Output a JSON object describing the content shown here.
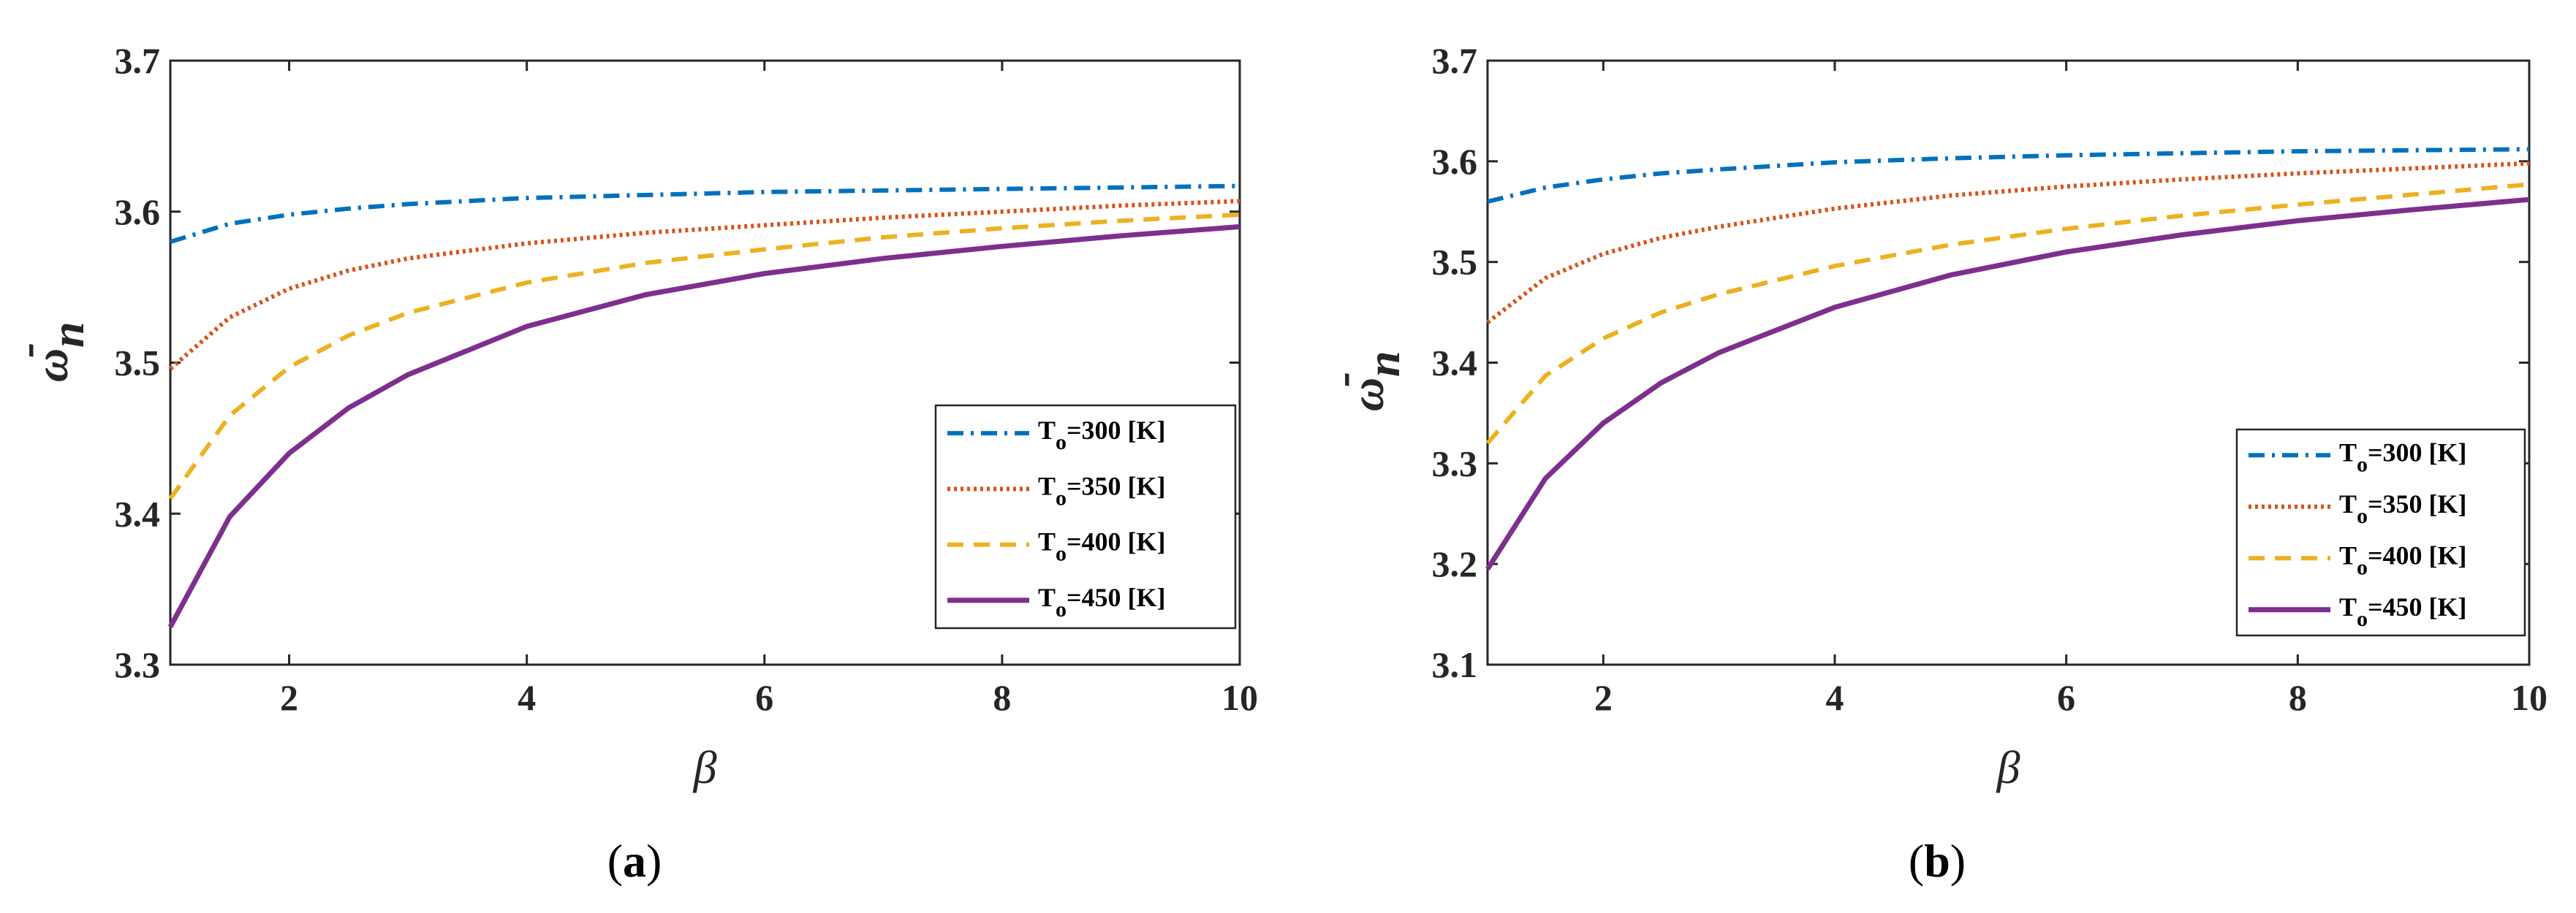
{
  "chart_data": [
    {
      "type": "line",
      "panel_label": "(a)",
      "panel_letter": "a",
      "xlabel": "β",
      "ylabel_symbol": "ω",
      "ylabel_sup": "-",
      "ylabel_sub": "n",
      "xlim": [
        1,
        10
      ],
      "ylim": [
        3.3,
        3.7
      ],
      "xticks": [
        2,
        4,
        6,
        8,
        10
      ],
      "yticks": [
        3.3,
        3.4,
        3.5,
        3.6,
        3.7
      ],
      "ytick_labels": [
        "3.3",
        "3.4",
        "3.5",
        "3.6",
        "3.7"
      ],
      "grid": false,
      "legend_position": "lower-right",
      "x": [
        1,
        1.5,
        2,
        2.5,
        3,
        4,
        5,
        6,
        7,
        8,
        9,
        10
      ],
      "series": [
        {
          "name": "T_o=300 [K]",
          "T": "T",
          "sub": "o",
          "rest": "=300 [K]",
          "color": "#0072BD",
          "dash": "dashdot",
          "values": [
            3.58,
            3.592,
            3.598,
            3.602,
            3.605,
            3.609,
            3.611,
            3.613,
            3.614,
            3.615,
            3.616,
            3.617
          ]
        },
        {
          "name": "T_o=350 [K]",
          "T": "T",
          "sub": "o",
          "rest": "=350 [K]",
          "color": "#D95319",
          "dash": "dotted",
          "values": [
            3.496,
            3.53,
            3.549,
            3.561,
            3.569,
            3.579,
            3.586,
            3.591,
            3.596,
            3.6,
            3.604,
            3.607
          ]
        },
        {
          "name": "T_o=400 [K]",
          "T": "T",
          "sub": "o",
          "rest": "=400 [K]",
          "color": "#EDB120",
          "dash": "dashed",
          "values": [
            3.41,
            3.465,
            3.497,
            3.518,
            3.533,
            3.553,
            3.566,
            3.575,
            3.583,
            3.589,
            3.594,
            3.598
          ]
        },
        {
          "name": "T_o=450 [K]",
          "T": "T",
          "sub": "o",
          "rest": "=450 [K]",
          "color": "#7E2F8E",
          "dash": "solid",
          "values": [
            3.325,
            3.398,
            3.44,
            3.47,
            3.492,
            3.524,
            3.545,
            3.559,
            3.569,
            3.577,
            3.584,
            3.59
          ]
        }
      ]
    },
    {
      "type": "line",
      "panel_label": "(b)",
      "panel_letter": "b",
      "xlabel": "β",
      "ylabel_symbol": "ω",
      "ylabel_sup": "-",
      "ylabel_sub": "n",
      "xlim": [
        1,
        10
      ],
      "ylim": [
        3.1,
        3.7
      ],
      "xticks": [
        2,
        4,
        6,
        8,
        10
      ],
      "yticks": [
        3.1,
        3.2,
        3.3,
        3.4,
        3.5,
        3.6,
        3.7
      ],
      "ytick_labels": [
        "3.1",
        "3.2",
        "3.3",
        "3.4",
        "3.5",
        "3.6",
        "3.7"
      ],
      "grid": false,
      "legend_position": "lower-right",
      "x": [
        1,
        1.5,
        2,
        2.5,
        3,
        4,
        5,
        6,
        7,
        8,
        9,
        10
      ],
      "series": [
        {
          "name": "T_o=300  [K]",
          "T": "T",
          "sub": "o",
          "rest": "=300  [K]",
          "color": "#0072BD",
          "dash": "dashdot",
          "values": [
            3.56,
            3.574,
            3.582,
            3.588,
            3.592,
            3.599,
            3.603,
            3.606,
            3.608,
            3.61,
            3.611,
            3.612
          ]
        },
        {
          "name": "T_o=350  [K]",
          "T": "T",
          "sub": "o",
          "rest": "=350  [K]",
          "color": "#D95319",
          "dash": "dotted",
          "values": [
            3.44,
            3.484,
            3.508,
            3.524,
            3.535,
            3.553,
            3.566,
            3.575,
            3.582,
            3.588,
            3.593,
            3.598
          ]
        },
        {
          "name": "T_o=400  [K]",
          "T": "T",
          "sub": "o",
          "rest": "=400  [K]",
          "color": "#EDB120",
          "dash": "dashed",
          "values": [
            3.32,
            3.387,
            3.424,
            3.45,
            3.468,
            3.496,
            3.517,
            3.533,
            3.546,
            3.557,
            3.567,
            3.577
          ]
        },
        {
          "name": "T_o=450  [K]",
          "T": "T",
          "sub": "o",
          "rest": "=450  [K]",
          "color": "#7E2F8E",
          "dash": "solid",
          "values": [
            3.195,
            3.285,
            3.34,
            3.38,
            3.41,
            3.455,
            3.487,
            3.51,
            3.527,
            3.541,
            3.552,
            3.562
          ]
        }
      ]
    }
  ]
}
